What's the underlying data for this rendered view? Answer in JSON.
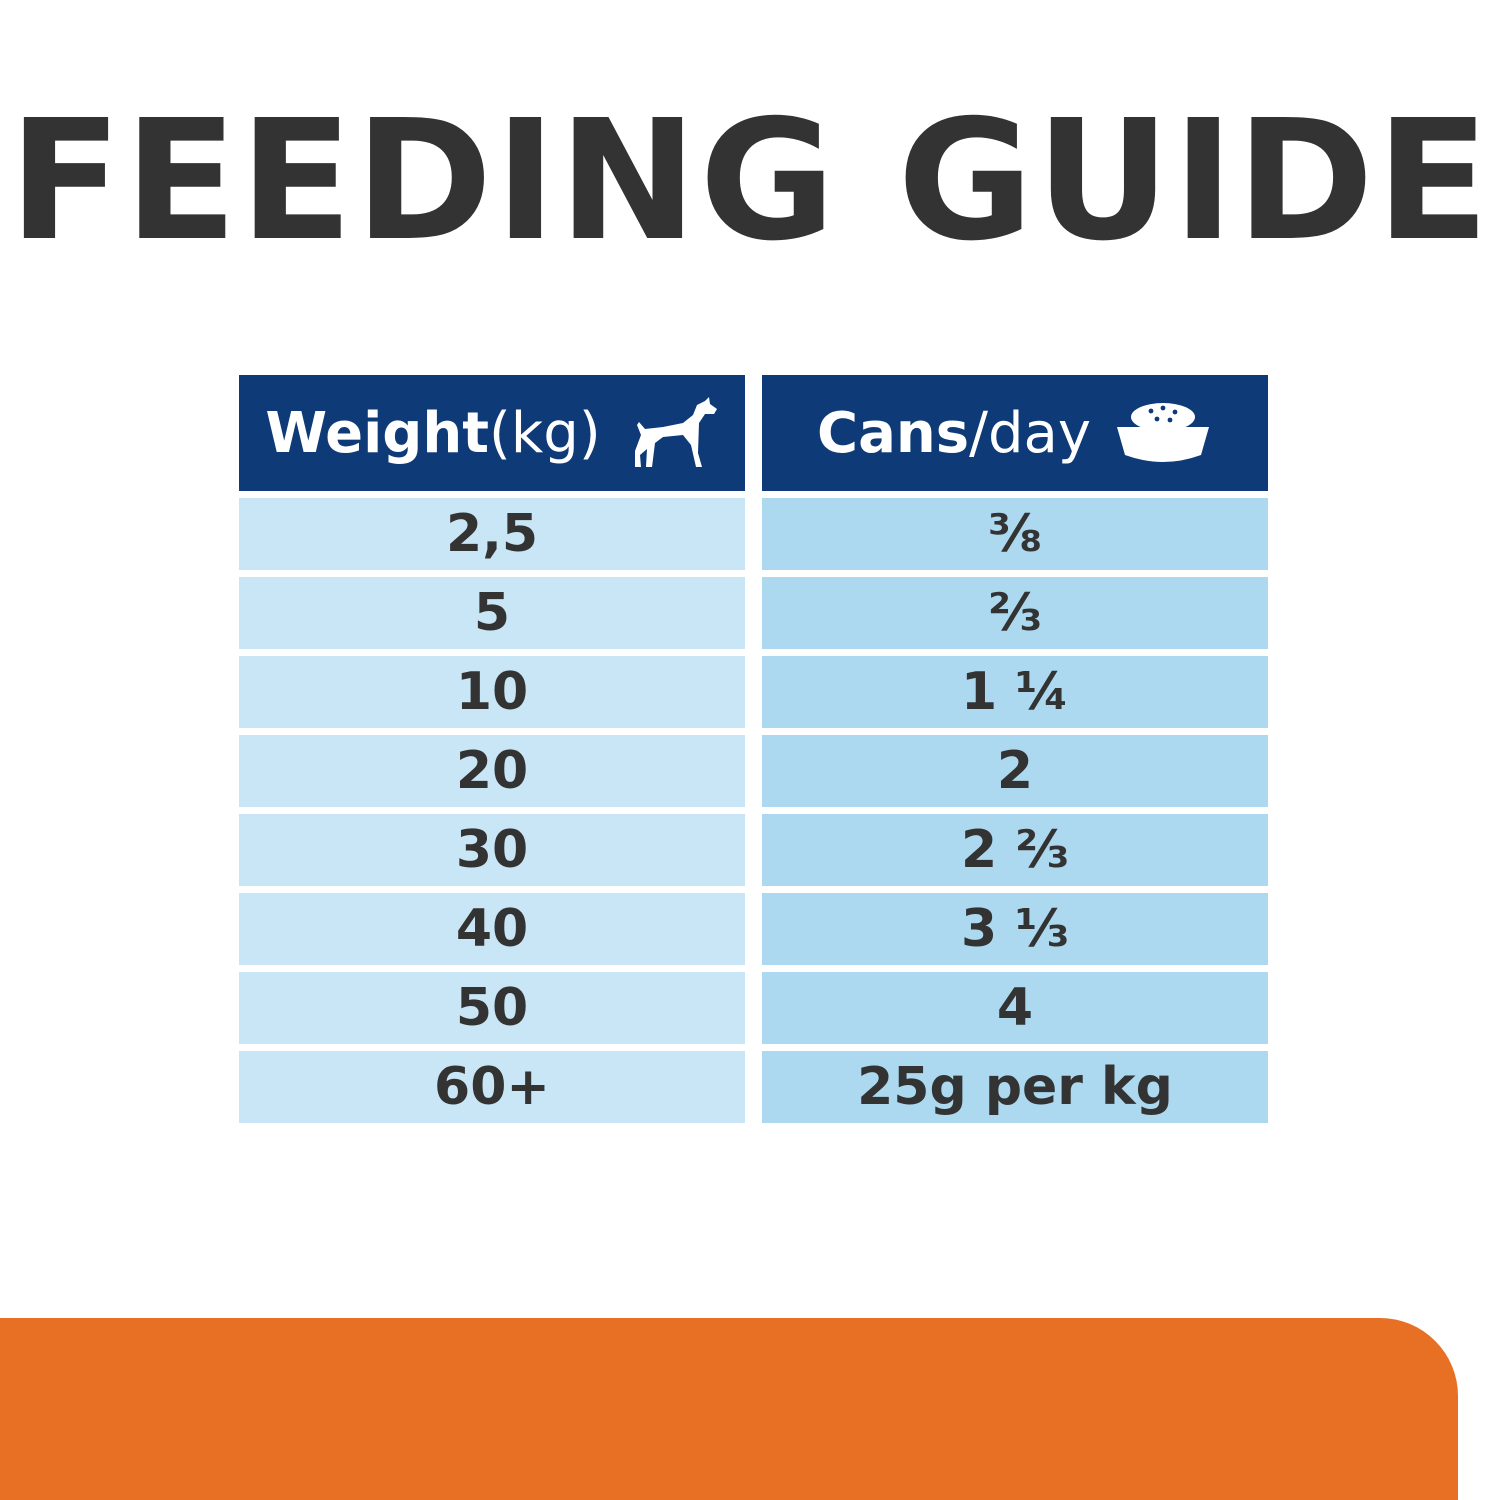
{
  "title": "FEEDING GUIDE",
  "columns": [
    {
      "label_bold": "Weight",
      "label_light": " (kg)",
      "icon": "dog-icon"
    },
    {
      "label_bold": "Cans",
      "label_light": "/day",
      "icon": "food-bowl-icon"
    }
  ],
  "rows": [
    {
      "weight": "2,5",
      "cans": "⅜"
    },
    {
      "weight": "5",
      "cans": "⅔"
    },
    {
      "weight": "10",
      "cans": "1 ¼"
    },
    {
      "weight": "20",
      "cans": "2"
    },
    {
      "weight": "30",
      "cans": "2 ⅔"
    },
    {
      "weight": "40",
      "cans": "3 ⅓"
    },
    {
      "weight": "50",
      "cans": "4"
    },
    {
      "weight": "60+",
      "cans": "25g per kg"
    }
  ],
  "colors": {
    "title": "#333333",
    "header_bg": "#0f3a78",
    "left_cell_bg": "#c8e6f5",
    "right_cell_bg": "#acd9ef",
    "footer_band": "#e87025"
  }
}
